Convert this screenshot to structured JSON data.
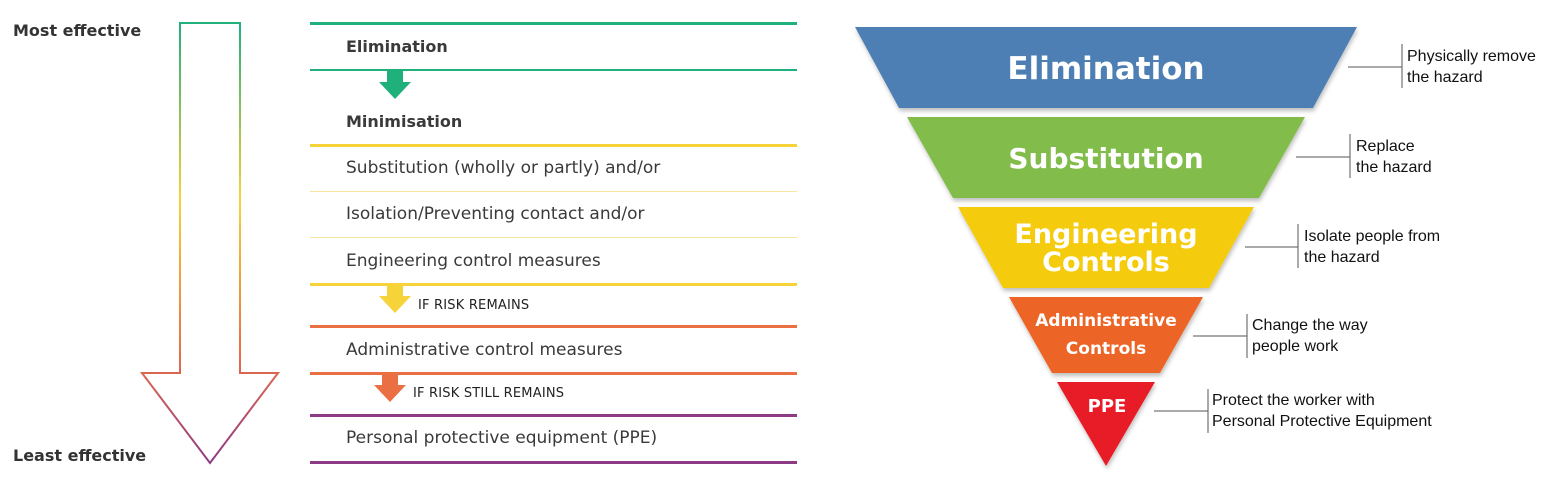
{
  "left": {
    "most_effective": "Most effective",
    "least_effective": "Least effective",
    "colors": {
      "green": "#1fb07c",
      "yellow": "#f7d33a",
      "orange": "#ea7044",
      "purple": "#8e3b86"
    },
    "rows": {
      "elimination": "Elimination",
      "minimisation": "Minimisation",
      "substitution": "Substitution (wholly or partly) and/or",
      "isolation": "Isolation/Preventing contact and/or",
      "engineering": "Engineering control measures",
      "if_risk_remains": "IF RISK REMAINS",
      "administrative": "Administrative control measures",
      "if_risk_still_remains": "IF RISK STILL REMAINS",
      "ppe": "Personal protective equipment (PPE)"
    }
  },
  "pyramid": {
    "levels": [
      {
        "line1": "Elimination",
        "line2": "",
        "color": "#4e7fb5",
        "note1": "Physically remove",
        "note2": "the hazard"
      },
      {
        "line1": "Substitution",
        "line2": "",
        "color": "#82bc4b",
        "note1": "Replace",
        "note2": "the hazard"
      },
      {
        "line1": "Engineering",
        "line2": "Controls",
        "color": "#f5cb0c",
        "note1": "Isolate people from",
        "note2": "the hazard"
      },
      {
        "line1": "Administrative",
        "line2": "Controls",
        "color": "#ec6525",
        "note1": "Change the way",
        "note2": "people work"
      },
      {
        "line1": "PPE",
        "line2": "",
        "color": "#e71f26",
        "note1": "Protect the worker with",
        "note2": "Personal Protective Equipment"
      }
    ]
  }
}
